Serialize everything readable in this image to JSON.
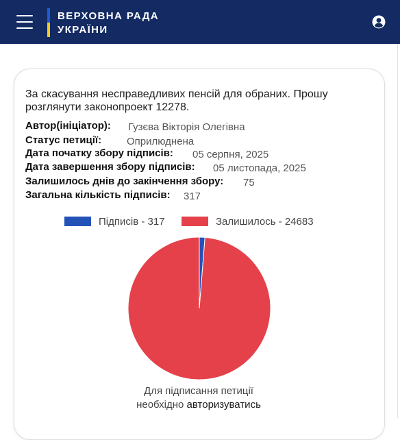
{
  "header": {
    "logo_line1": "ВЕРХОВНА РАДА",
    "logo_line2": "УКРАЇНИ",
    "colors": {
      "bar": "#132a63",
      "flag_blue": "#1f5bd6",
      "flag_yellow": "#f5cc1f"
    }
  },
  "petition": {
    "title": "За скасування несправедливих пенсій для обраних. Прошу розглянути законопроект 12278.",
    "fields": [
      {
        "label": "Автор(ініціатор):",
        "value": "Гузєва Вікторія Олегівна"
      },
      {
        "label": "Статус петиції:",
        "value": "Оприлюднена"
      },
      {
        "label": "Дата початку збору підписів:",
        "value": "05 серпня, 2025"
      },
      {
        "label": "Дата завершення збору підписів:",
        "value": "05 листопада, 2025"
      },
      {
        "label": "Залишилось днів до закінчення збору:",
        "value": "75"
      },
      {
        "label": "Загальна кількість підписів:",
        "value": "317"
      }
    ]
  },
  "chart_data": {
    "type": "pie",
    "title": "",
    "legend_position": "top",
    "slices": [
      {
        "label": "Підписів - 317",
        "value": 317,
        "color": "#2352b8"
      },
      {
        "label": "Залишилось - 24683",
        "value": 24683,
        "color": "#e5414b"
      }
    ]
  },
  "note": {
    "line1": "Для підписання петиції",
    "line2_prefix": "необхідно",
    "link": "авторизуватись"
  },
  "icons": {
    "menu": "hamburger-icon",
    "user": "user-account-icon"
  }
}
